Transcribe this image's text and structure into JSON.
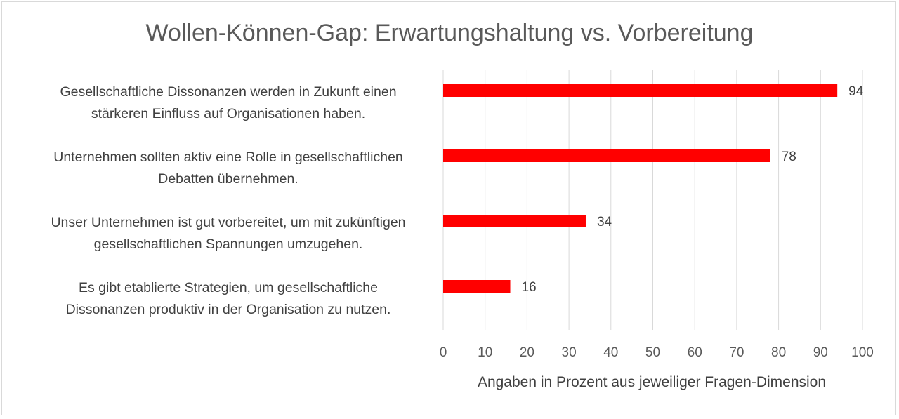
{
  "chart_data": {
    "type": "bar",
    "orientation": "horizontal",
    "title": "Wollen-Können-Gap: Erwartungshaltung vs. Vorbereitung",
    "xlabel": "Angaben in Prozent aus jeweiliger Fragen-Dimension",
    "ylabel": "",
    "xlim": [
      0,
      100
    ],
    "x_ticks": [
      0,
      10,
      20,
      30,
      40,
      50,
      60,
      70,
      80,
      90,
      100
    ],
    "grid": true,
    "legend": "none",
    "bar_color": "#ff0000",
    "categories": [
      [
        "Gesellschaftliche Dissonanzen werden in Zukunft einen",
        "stärkeren Einfluss auf Organisationen haben."
      ],
      [
        "Unternehmen sollten aktiv eine Rolle in gesellschaftlichen",
        "Debatten übernehmen."
      ],
      [
        "Unser Unternehmen ist gut vorbereitet, um mit zukünftigen",
        "gesellschaftlichen Spannungen umzugehen."
      ],
      [
        "Es gibt etablierte Strategien, um gesellschaftliche",
        "Dissonanzen produktiv in der Organisation zu nutzen."
      ]
    ],
    "values": [
      94,
      78,
      34,
      16
    ]
  }
}
